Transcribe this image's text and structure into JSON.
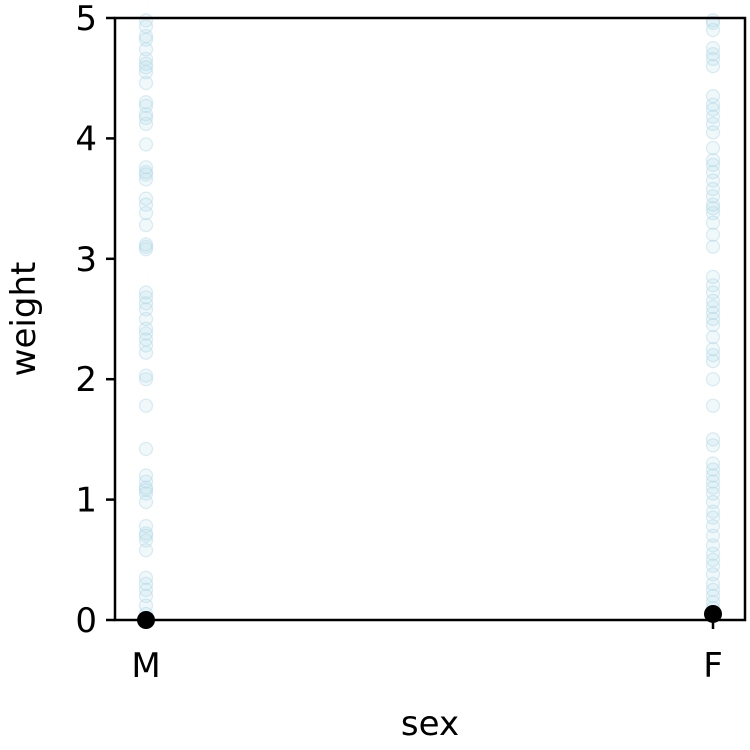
{
  "chart_data": {
    "type": "scatter",
    "categories": [
      "M",
      "F"
    ],
    "xlabel": "sex",
    "ylabel": "weight",
    "ylim": [
      0,
      5
    ],
    "yticks": [
      0,
      1,
      2,
      3,
      4,
      5
    ],
    "grid": false,
    "legend": "none",
    "colors": {
      "points": "#add8e6",
      "highlight": "#000000",
      "axes": "#000000"
    },
    "series": [
      {
        "category": "M",
        "values": [
          4.98,
          4.93,
          4.85,
          4.82,
          4.74,
          4.66,
          4.62,
          4.59,
          4.55,
          4.46,
          4.3,
          4.27,
          4.2,
          4.17,
          4.12,
          3.95,
          3.76,
          3.72,
          3.7,
          3.66,
          3.5,
          3.45,
          3.38,
          3.28,
          3.12,
          3.1,
          3.08,
          2.72,
          2.68,
          2.63,
          2.58,
          2.5,
          2.42,
          2.38,
          2.33,
          2.28,
          2.22,
          2.03,
          2.0,
          1.78,
          1.42,
          1.2,
          1.15,
          1.1,
          1.08,
          1.05,
          0.98,
          0.78,
          0.72,
          0.7,
          0.66,
          0.58,
          0.35,
          0.3,
          0.25,
          0.2,
          0.12,
          0.05
        ]
      },
      {
        "category": "F",
        "values": [
          4.98,
          4.96,
          4.9,
          4.75,
          4.7,
          4.66,
          4.6,
          4.35,
          4.28,
          4.24,
          4.18,
          4.12,
          4.05,
          3.92,
          3.82,
          3.78,
          3.72,
          3.65,
          3.58,
          3.52,
          3.45,
          3.42,
          3.38,
          3.3,
          3.2,
          3.1,
          2.85,
          2.78,
          2.72,
          2.65,
          2.6,
          2.55,
          2.5,
          2.45,
          2.35,
          2.25,
          2.2,
          2.15,
          2.0,
          1.78,
          1.5,
          1.45,
          1.3,
          1.25,
          1.2,
          1.15,
          1.1,
          1.05,
          0.98,
          0.9,
          0.85,
          0.78,
          0.7,
          0.62,
          0.55,
          0.5,
          0.45,
          0.38,
          0.3,
          0.25,
          0.2,
          0.15,
          0.1
        ]
      }
    ],
    "highlight": [
      {
        "category": "M",
        "value": 0.0
      },
      {
        "category": "F",
        "value": 0.05
      }
    ]
  }
}
